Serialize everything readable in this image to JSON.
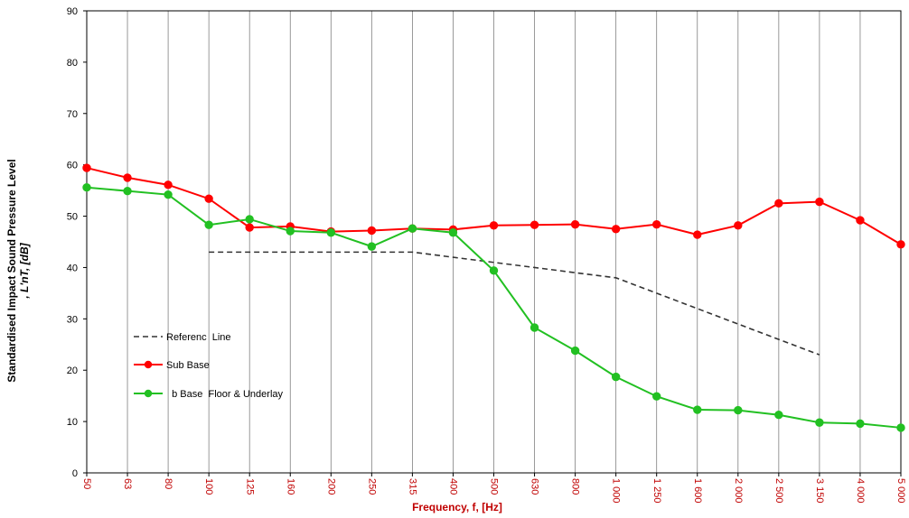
{
  "chart_data": {
    "type": "line",
    "xlabel": "Frequency, f, [Hz]",
    "ylabel_line1": "Standardised Impact Sound Pressure Level",
    "ylabel_line2": ", L'nT, [dB]",
    "ylim": [
      0,
      90
    ],
    "yticks": [
      0,
      10,
      20,
      30,
      40,
      50,
      60,
      70,
      80,
      90
    ],
    "grid": "vertical",
    "legend_position": "left-middle",
    "categories": [
      "50",
      "63",
      "80",
      "100",
      "125",
      "160",
      "200",
      "250",
      "315",
      "400",
      "500",
      "630",
      "800",
      "1 000",
      "1 250",
      "1 600",
      "2 000",
      "2 500",
      "3 150",
      "4 000",
      "5 000"
    ],
    "series": [
      {
        "name": "Referenc  Line",
        "style": "dashed",
        "color": "#333333",
        "markers": false,
        "values": [
          null,
          null,
          null,
          43,
          43,
          43,
          43,
          43,
          43,
          42,
          41,
          40,
          39,
          38,
          35,
          32,
          29,
          26,
          23,
          null,
          null
        ]
      },
      {
        "name": "Sub Base",
        "style": "solid",
        "color": "#ff0000",
        "markers": true,
        "values": [
          59.4,
          57.5,
          56.1,
          53.4,
          47.8,
          48.0,
          47.0,
          47.2,
          47.6,
          47.4,
          48.2,
          48.3,
          48.4,
          47.5,
          48.4,
          46.4,
          48.2,
          52.5,
          52.8,
          49.2,
          44.5
        ]
      },
      {
        "name": "  b Base  Floor & Underlay",
        "style": "solid",
        "color": "#22c022",
        "markers": true,
        "values": [
          55.6,
          54.9,
          54.2,
          48.3,
          49.4,
          47.1,
          46.8,
          44.1,
          47.6,
          46.8,
          39.4,
          28.3,
          23.8,
          18.7,
          14.9,
          12.3,
          12.2,
          11.3,
          9.8,
          9.6,
          8.8
        ]
      }
    ]
  }
}
